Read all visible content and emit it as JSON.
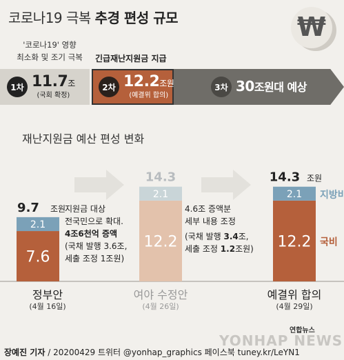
{
  "header": {
    "title_light": "코로나19 극복",
    "title_bold": "추경 편성 규모"
  },
  "captions": {
    "stage1_line1": "'코로나19' 영향",
    "stage1_line2": "최소화 및 조기 극복",
    "stage2": "긴급재난지원금 지급"
  },
  "stages": [
    {
      "badge": "1차",
      "amount": "11.7",
      "unit": "조",
      "note": "(국회 확정)"
    },
    {
      "badge": "2차",
      "amount": "12.2",
      "unit": "조원",
      "note": "(예결위 합의)"
    },
    {
      "badge": "3차",
      "amount": "30",
      "unit": "조원대 예상"
    }
  ],
  "section_title": "재난지원금 예산 편성 변화",
  "chart_data": {
    "type": "bar",
    "stacked": true,
    "categories": [
      "정부안",
      "여야 수정안",
      "예결위 합의"
    ],
    "category_dates": [
      "(4월 16일)",
      "(4월 26일)",
      "(4월 29일)"
    ],
    "series": [
      {
        "name": "국비",
        "values": [
          7.6,
          12.2,
          12.2
        ],
        "color": "#b5603b"
      },
      {
        "name": "지방비",
        "values": [
          2.1,
          2.1,
          2.1
        ],
        "color": "#7ba1b8"
      }
    ],
    "totals": [
      "9.7",
      "14.3",
      "14.3"
    ],
    "total_unit": "조원",
    "segment_labels": [
      [
        "7.6",
        "2.1"
      ],
      [
        "12.2",
        "2.1"
      ],
      [
        "12.2",
        "2.1"
      ]
    ],
    "highlight": [
      true,
      false,
      true
    ],
    "faded_colors": {
      "national": "#e3c2ac",
      "local": "#c9d5d8",
      "text": "#b8bcbf"
    }
  },
  "notes": {
    "n1_line1": "지원금 대상",
    "n1_line2": "전국민으로 확대.",
    "n1_line3": "4조6천억 증액",
    "n1_line4": "(국채 발행 3.6조,",
    "n1_line5": "세출 조정 1조원)",
    "n2_line1": "4.6조 증액분",
    "n2_line2": "세부 내용 조정",
    "n2_line3_a": "(국채 발행 ",
    "n2_line3_b": "3.4",
    "n2_line3_c": "조,",
    "n2_line4_a": "세출 조정 ",
    "n2_line4_b": "1.2",
    "n2_line4_c": "조원)"
  },
  "footer": {
    "credit_name": "장예진 기자",
    "credit_rest": " / 20200429 트위터 @yonhap_graphics  페이스북 tuney.kr/LeYN1",
    "logo_small": "연합뉴스",
    "logo_main": "YONHAP NEWS"
  },
  "colors": {
    "national": "#b5603b",
    "local": "#7ba1b8",
    "arrow": "#e3e1dc"
  }
}
